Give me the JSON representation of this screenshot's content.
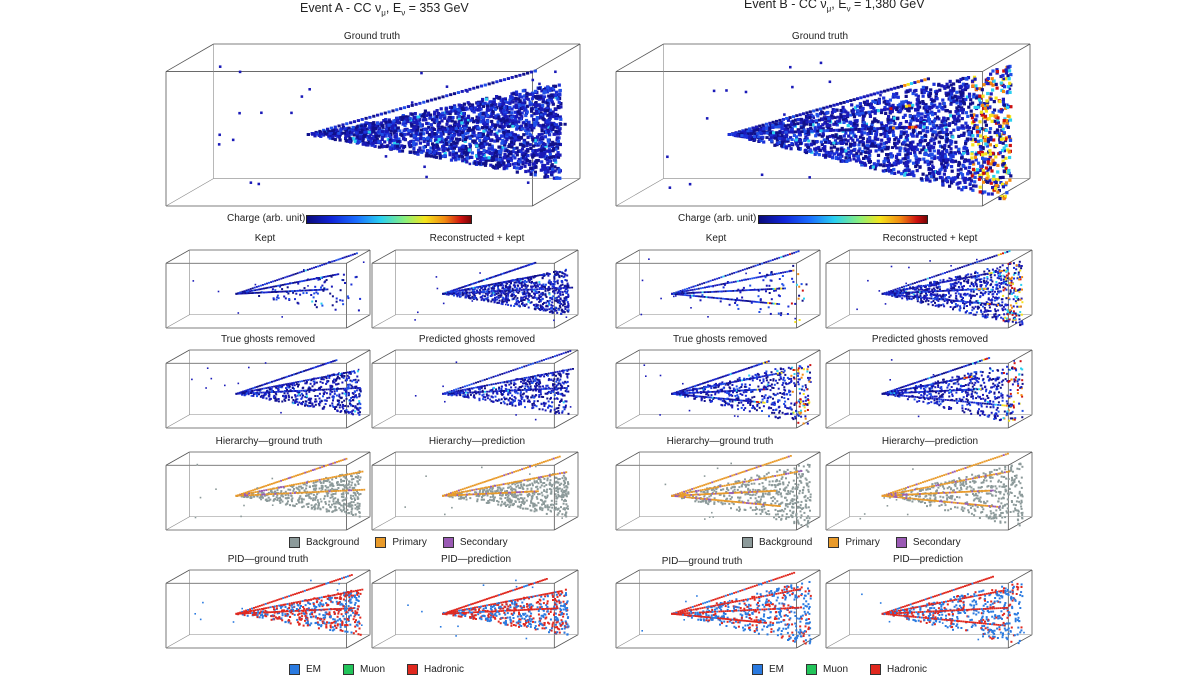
{
  "eventA": {
    "title_prefix": "Event A - CC ν",
    "title_sub1": "μ",
    "title_mid": ", E",
    "title_sub2": "ν",
    "title_suffix": " = 353 GeV",
    "ground_truth_label": "Ground truth",
    "charge_label": "Charge (arb. unit)",
    "panels": {
      "kept": "Kept",
      "reconstructed": "Reconstructed + kept",
      "true_ghosts": "True ghosts removed",
      "predicted_ghosts": "Predicted ghosts removed",
      "hier_gt": "Hierarchy—ground truth",
      "hier_pred": "Hierarchy—prediction",
      "pid_gt": "PID—ground truth",
      "pid_pred": "PID—prediction"
    }
  },
  "eventB": {
    "title_prefix": "Event B - CC ν",
    "title_sub1": "μ",
    "title_mid": ", E",
    "title_sub2": "ν",
    "title_suffix": " = 1,380 GeV",
    "ground_truth_label": "Ground truth",
    "charge_label": "Charge (arb. unit)",
    "panels": {
      "kept": "Kept",
      "reconstructed": "Reconstructed + kept",
      "true_ghosts": "True ghosts removed",
      "predicted_ghosts": "Predicted ghosts removed",
      "hier_gt": "Hierarchy—ground truth",
      "hier_pred": "Hierarchy—prediction",
      "pid_gt": "PID—ground truth",
      "pid_pred": "PID—prediction"
    }
  },
  "legends": {
    "hierarchy": [
      {
        "label": "Background",
        "color": "#8c9a9a"
      },
      {
        "label": "Primary",
        "color": "#e89a2a"
      },
      {
        "label": "Secondary",
        "color": "#9a5ab4"
      }
    ],
    "pid": [
      {
        "label": "EM",
        "color": "#2a7ae0"
      },
      {
        "label": "Muon",
        "color": "#22c45a"
      },
      {
        "label": "Hadronic",
        "color": "#e0281e"
      }
    ]
  },
  "colors": {
    "charge_low": "#1a1ab8",
    "charge_mid": "#2ad0f0",
    "charge_high": "#cc1010",
    "background": "#8c9a9a",
    "primary": "#e89a2a",
    "secondary": "#9a5ab4",
    "em": "#2a7ae0",
    "muon": "#22c45a",
    "hadronic": "#e0281e"
  }
}
